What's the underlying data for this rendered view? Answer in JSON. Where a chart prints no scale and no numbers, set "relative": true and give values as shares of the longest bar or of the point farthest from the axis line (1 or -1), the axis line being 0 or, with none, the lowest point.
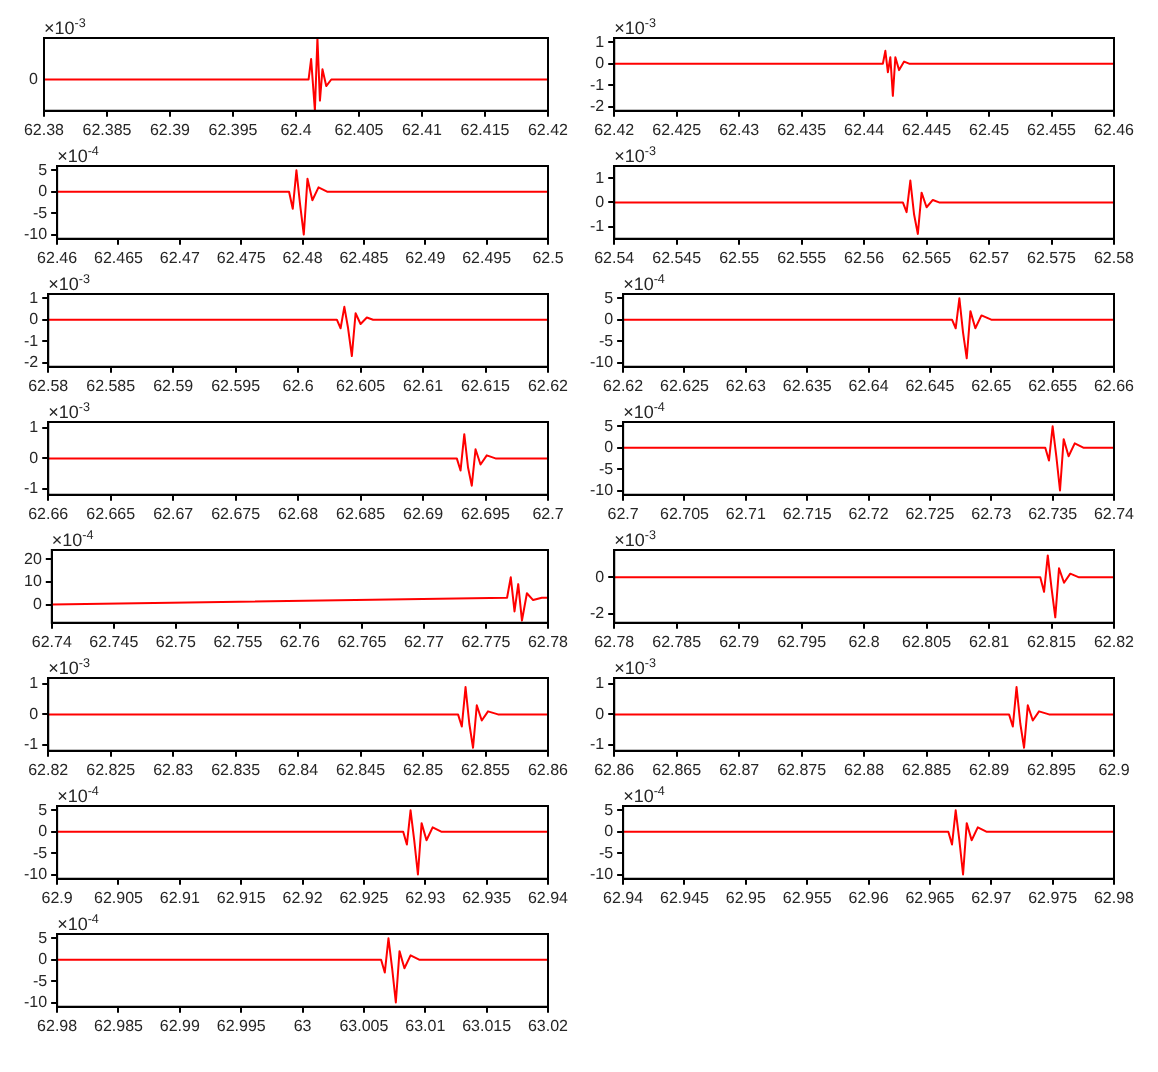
{
  "chart_data": [
    {
      "type": "line",
      "marker": "none",
      "relative": true,
      "xlim": [
        62.38,
        62.42
      ],
      "xticks": [
        62.38,
        62.385,
        62.39,
        62.395,
        62.4,
        62.405,
        62.41,
        62.415,
        62.42
      ],
      "annotations": [
        "×10$^{-3}$",
        "0"
      ],
      "series": [
        {
          "color": "#ff0000",
          "x": [
            62.38,
            62.401,
            62.4012,
            62.4015,
            62.4017,
            62.4019,
            62.4021,
            62.4024,
            62.4028,
            62.42
          ],
          "values": [
            0.43,
            0.43,
            0.71,
            0,
            1,
            0.14,
            0.57,
            0.34,
            0.43,
            0.43
          ]
        }
      ]
    },
    {
      "type": "line",
      "marker": "none",
      "xlim": [
        62.42,
        62.46
      ],
      "xticks": [
        62.42,
        62.425,
        62.43,
        62.435,
        62.44,
        62.445,
        62.45,
        62.455,
        62.46
      ],
      "ylim": [
        -2.2,
        1.2
      ],
      "yticks": [
        -2,
        -1,
        0,
        1
      ],
      "annotations": [
        "×10$^{-3}$"
      ],
      "series": [
        {
          "color": "#ff0000",
          "x": [
            62.42,
            62.4415,
            62.4417,
            62.4419,
            62.4421,
            62.4423,
            62.4425,
            62.4428,
            62.4432,
            62.4436,
            62.46
          ],
          "values": [
            0,
            0,
            0.6,
            -0.4,
            0.3,
            -1.5,
            0.3,
            -0.3,
            0.1,
            0,
            0
          ]
        }
      ]
    },
    {
      "type": "line",
      "marker": "none",
      "xlim": [
        62.46,
        62.5
      ],
      "xticks": [
        62.46,
        62.465,
        62.47,
        62.475,
        62.48,
        62.485,
        62.49,
        62.495,
        62.5
      ],
      "ylim": [
        -11,
        6
      ],
      "yticks": [
        -10,
        -5,
        0,
        5
      ],
      "annotations": [
        "×10$^{-4}$"
      ],
      "series": [
        {
          "color": "#ff0000",
          "x": [
            62.46,
            62.4789,
            62.4792,
            62.4795,
            62.4798,
            62.4801,
            62.4804,
            62.4808,
            62.4813,
            62.482,
            62.5
          ],
          "values": [
            0,
            0,
            -4,
            5,
            -3,
            -10,
            3,
            -2,
            1,
            0,
            0
          ]
        }
      ]
    },
    {
      "type": "line",
      "marker": "none",
      "xlim": [
        62.54,
        62.58
      ],
      "xticks": [
        62.54,
        62.545,
        62.55,
        62.555,
        62.56,
        62.565,
        62.57,
        62.575,
        62.58
      ],
      "ylim": [
        -1.5,
        1.5
      ],
      "yticks": [
        -1,
        0,
        1
      ],
      "annotations": [
        "×10$^{-3}$"
      ],
      "series": [
        {
          "color": "#ff0000",
          "x": [
            62.54,
            62.5631,
            62.5634,
            62.5637,
            62.564,
            62.5643,
            62.5646,
            62.565,
            62.5655,
            62.566,
            62.58
          ],
          "values": [
            0,
            0,
            -0.4,
            0.9,
            -0.5,
            -1.3,
            0.4,
            -0.2,
            0.1,
            0,
            0
          ]
        }
      ]
    },
    {
      "type": "line",
      "marker": "none",
      "xlim": [
        62.58,
        62.62
      ],
      "xticks": [
        62.58,
        62.585,
        62.59,
        62.595,
        62.6,
        62.605,
        62.61,
        62.615,
        62.62
      ],
      "ylim": [
        -2.2,
        1.2
      ],
      "yticks": [
        -2,
        -1,
        0,
        1
      ],
      "annotations": [
        "×10$^{-3}$"
      ],
      "series": [
        {
          "color": "#ff0000",
          "x": [
            62.58,
            62.6031,
            62.6034,
            62.6037,
            62.604,
            62.6043,
            62.6046,
            62.605,
            62.6055,
            62.606,
            62.62
          ],
          "values": [
            0,
            0,
            -0.4,
            0.6,
            -0.4,
            -1.7,
            0.3,
            -0.2,
            0.1,
            0,
            0
          ]
        }
      ]
    },
    {
      "type": "line",
      "marker": "none",
      "xlim": [
        62.62,
        62.66
      ],
      "xticks": [
        62.62,
        62.625,
        62.63,
        62.635,
        62.64,
        62.645,
        62.65,
        62.655,
        62.66
      ],
      "ylim": [
        -11,
        6
      ],
      "yticks": [
        -10,
        -5,
        0,
        5
      ],
      "annotations": [
        "×10$^{-4}$"
      ],
      "series": [
        {
          "color": "#ff0000",
          "x": [
            62.62,
            62.6468,
            62.6471,
            62.6474,
            62.6477,
            62.648,
            62.6483,
            62.6487,
            62.6492,
            62.65,
            62.66
          ],
          "values": [
            0,
            0,
            -2,
            5,
            -3,
            -9,
            2,
            -2,
            1,
            0,
            0
          ]
        }
      ]
    },
    {
      "type": "line",
      "marker": "none",
      "xlim": [
        62.66,
        62.7
      ],
      "xticks": [
        62.66,
        62.665,
        62.67,
        62.675,
        62.68,
        62.685,
        62.69,
        62.695,
        62.7
      ],
      "ylim": [
        -1.2,
        1.2
      ],
      "yticks": [
        -1,
        0,
        1
      ],
      "annotations": [
        "×10$^{-3}$"
      ],
      "series": [
        {
          "color": "#ff0000",
          "x": [
            62.66,
            62.6927,
            62.693,
            62.6933,
            62.6936,
            62.6939,
            62.6942,
            62.6946,
            62.6951,
            62.6958,
            62.7
          ],
          "values": [
            0,
            0,
            -0.4,
            0.8,
            -0.3,
            -0.9,
            0.3,
            -0.2,
            0.1,
            0,
            0
          ]
        }
      ]
    },
    {
      "type": "line",
      "marker": "none",
      "xlim": [
        62.7,
        62.74
      ],
      "xticks": [
        62.7,
        62.705,
        62.71,
        62.715,
        62.72,
        62.725,
        62.73,
        62.735,
        62.74
      ],
      "ylim": [
        -11,
        6
      ],
      "yticks": [
        -10,
        -5,
        0,
        5
      ],
      "annotations": [
        "×10$^{-4}$"
      ],
      "series": [
        {
          "color": "#ff0000",
          "x": [
            62.7,
            62.7344,
            62.7347,
            62.735,
            62.7353,
            62.7356,
            62.7359,
            62.7363,
            62.7368,
            62.7375,
            62.74
          ],
          "values": [
            0,
            0,
            -3,
            5,
            -2,
            -10,
            2,
            -2,
            1,
            0,
            0
          ]
        }
      ]
    },
    {
      "type": "line",
      "marker": "none",
      "xlim": [
        62.74,
        62.78
      ],
      "xticks": [
        62.74,
        62.745,
        62.75,
        62.755,
        62.76,
        62.765,
        62.77,
        62.775,
        62.78
      ],
      "ylim": [
        -8,
        24
      ],
      "yticks": [
        0,
        10,
        20
      ],
      "annotations": [
        "×10$^{-4}$"
      ],
      "series": [
        {
          "color": "#ff0000",
          "x": [
            62.74,
            62.7767,
            62.777,
            62.7773,
            62.7776,
            62.7779,
            62.7783,
            62.7788,
            62.7795,
            62.78
          ],
          "values": [
            0,
            3,
            12,
            -3,
            9,
            -7,
            5,
            2,
            3,
            3
          ]
        }
      ]
    },
    {
      "type": "line",
      "marker": "none",
      "xlim": [
        62.78,
        62.82
      ],
      "xticks": [
        62.78,
        62.785,
        62.79,
        62.795,
        62.8,
        62.805,
        62.81,
        62.815,
        62.82
      ],
      "ylim": [
        -2.5,
        1.5
      ],
      "yticks": [
        -2,
        0
      ],
      "annotations": [
        "×10$^{-3}$"
      ],
      "series": [
        {
          "color": "#ff0000",
          "x": [
            62.78,
            62.8141,
            62.8144,
            62.8147,
            62.815,
            62.8153,
            62.8156,
            62.816,
            62.8165,
            62.8172,
            62.82
          ],
          "values": [
            0,
            0,
            -0.8,
            1.2,
            -0.6,
            -2.2,
            0.5,
            -0.3,
            0.2,
            0,
            0
          ]
        }
      ]
    },
    {
      "type": "line",
      "marker": "none",
      "xlim": [
        62.82,
        62.86
      ],
      "xticks": [
        62.82,
        62.825,
        62.83,
        62.835,
        62.84,
        62.845,
        62.85,
        62.855,
        62.86
      ],
      "ylim": [
        -1.2,
        1.2
      ],
      "yticks": [
        -1,
        0,
        1
      ],
      "annotations": [
        "×10$^{-3}$"
      ],
      "series": [
        {
          "color": "#ff0000",
          "x": [
            62.82,
            62.8528,
            62.8531,
            62.8534,
            62.8537,
            62.854,
            62.8543,
            62.8547,
            62.8552,
            62.856,
            62.86
          ],
          "values": [
            0,
            0,
            -0.4,
            0.9,
            -0.3,
            -1.1,
            0.3,
            -0.2,
            0.1,
            0,
            0
          ]
        }
      ]
    },
    {
      "type": "line",
      "marker": "none",
      "xlim": [
        62.86,
        62.9
      ],
      "xticks": [
        62.86,
        62.865,
        62.87,
        62.875,
        62.88,
        62.885,
        62.89,
        62.895,
        62.9
      ],
      "ylim": [
        -1.2,
        1.2
      ],
      "yticks": [
        -1,
        0,
        1
      ],
      "annotations": [
        "×10$^{-3}$"
      ],
      "series": [
        {
          "color": "#ff0000",
          "x": [
            62.86,
            62.8916,
            62.8919,
            62.8922,
            62.8925,
            62.8928,
            62.8931,
            62.8935,
            62.894,
            62.8948,
            62.9
          ],
          "values": [
            0,
            0,
            -0.4,
            0.9,
            -0.3,
            -1.1,
            0.3,
            -0.2,
            0.1,
            0,
            0
          ]
        }
      ]
    },
    {
      "type": "line",
      "marker": "none",
      "xlim": [
        62.9,
        62.94
      ],
      "xticks": [
        62.9,
        62.905,
        62.91,
        62.915,
        62.92,
        62.925,
        62.93,
        62.935,
        62.94
      ],
      "ylim": [
        -11,
        6
      ],
      "yticks": [
        -10,
        -5,
        0,
        5
      ],
      "annotations": [
        "×10$^{-4}$"
      ],
      "series": [
        {
          "color": "#ff0000",
          "x": [
            62.9,
            62.9282,
            62.9285,
            62.9288,
            62.9291,
            62.9294,
            62.9297,
            62.9301,
            62.9306,
            62.9313,
            62.94
          ],
          "values": [
            0,
            0,
            -3,
            5,
            -2,
            -10,
            2,
            -2,
            1,
            0,
            0
          ]
        }
      ]
    },
    {
      "type": "line",
      "marker": "none",
      "xlim": [
        62.94,
        62.98
      ],
      "xticks": [
        62.94,
        62.945,
        62.95,
        62.955,
        62.96,
        62.965,
        62.97,
        62.975,
        62.98
      ],
      "ylim": [
        -11,
        6
      ],
      "yticks": [
        -10,
        -5,
        0,
        5
      ],
      "annotations": [
        "×10$^{-4}$"
      ],
      "series": [
        {
          "color": "#ff0000",
          "x": [
            62.94,
            62.9665,
            62.9668,
            62.9671,
            62.9674,
            62.9677,
            62.968,
            62.9684,
            62.9689,
            62.9696,
            62.98
          ],
          "values": [
            0,
            0,
            -3,
            5,
            -2,
            -10,
            2,
            -2,
            1,
            0,
            0
          ]
        }
      ]
    },
    {
      "type": "line",
      "marker": "none",
      "xlim": [
        62.98,
        63.02
      ],
      "xticks": [
        62.98,
        62.985,
        62.99,
        62.995,
        63,
        63.005,
        63.01,
        63.015,
        63.02
      ],
      "ylim": [
        -11,
        6
      ],
      "yticks": [
        -10,
        -5,
        0,
        5
      ],
      "annotations": [
        "×10$^{-4}$"
      ],
      "series": [
        {
          "color": "#ff0000",
          "x": [
            62.98,
            63.0064,
            63.0067,
            63.007,
            63.0073,
            63.0076,
            63.0079,
            63.0083,
            63.0088,
            63.0095,
            63.02
          ],
          "values": [
            0,
            0,
            -3,
            5,
            -2,
            -10,
            2,
            -2,
            1,
            0,
            0
          ]
        }
      ]
    }
  ]
}
